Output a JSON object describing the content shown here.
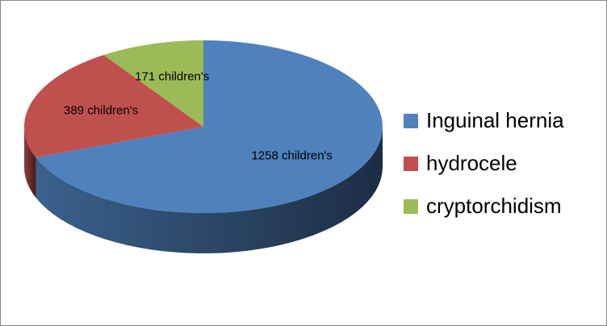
{
  "chart_data": {
    "type": "pie3d",
    "categories": [
      "Inguinal hernia",
      "hydrocele",
      "cryptorchidism"
    ],
    "values": [
      1258,
      389,
      171
    ],
    "value_labels": [
      "1258 children's",
      "389 children's",
      "171 children's"
    ],
    "colors": [
      "#4f81bd",
      "#c0504d",
      "#9bbb59"
    ],
    "legend": "right"
  }
}
